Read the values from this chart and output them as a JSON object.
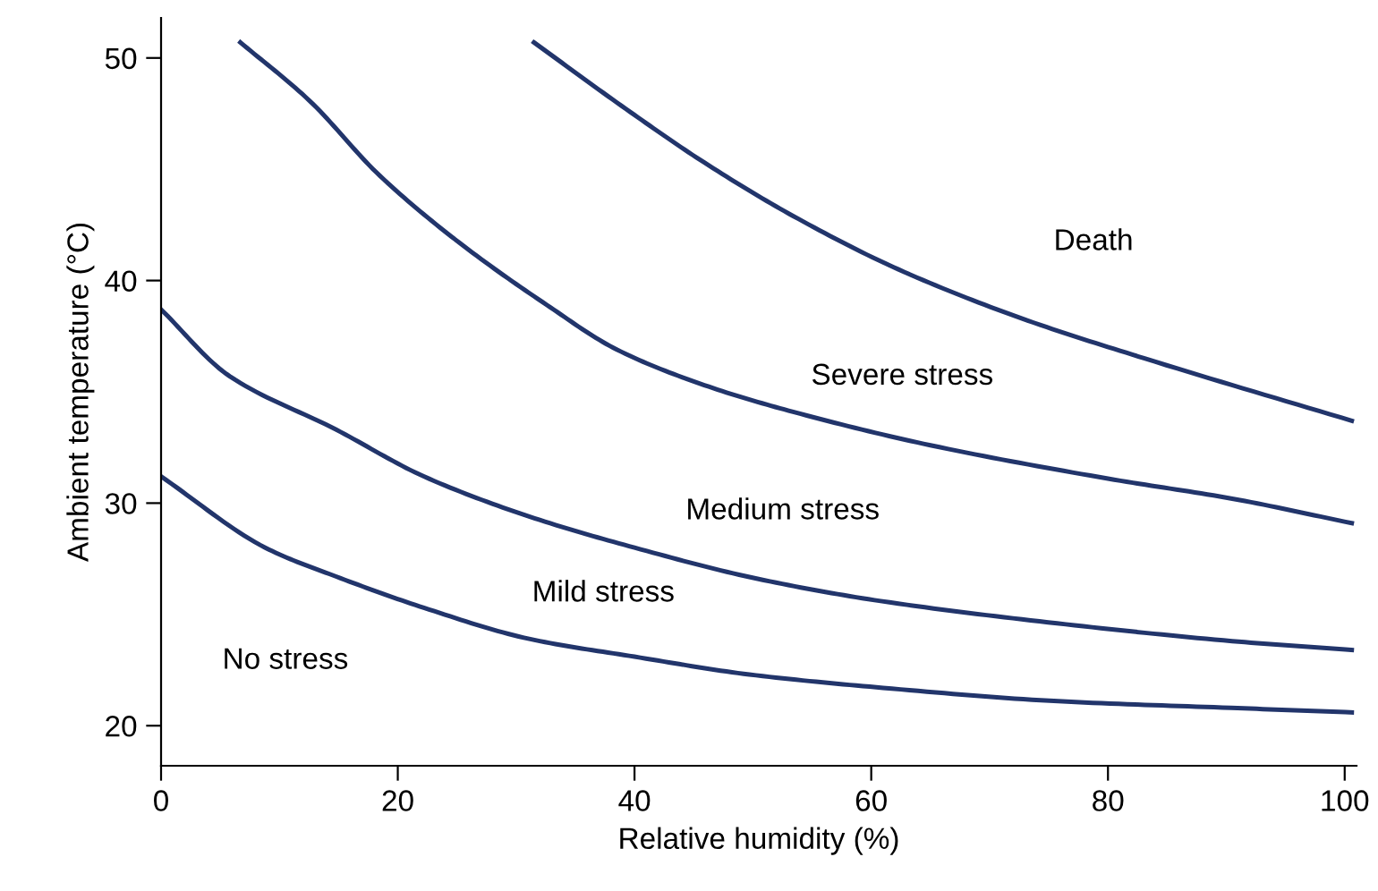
{
  "chart_data": {
    "type": "line",
    "xlabel": "Relative humidity (%)",
    "ylabel": "Ambient temperature (°C)",
    "xlim": [
      0,
      101
    ],
    "ylim": [
      18.2,
      51.8
    ],
    "xticks": [
      0,
      20,
      40,
      60,
      80,
      100
    ],
    "yticks": [
      20,
      30,
      40,
      50
    ],
    "grid": false,
    "legend": false,
    "marker": "none",
    "line_style": "solid",
    "series": [
      {
        "color": "#22356b",
        "x": [
          0,
          8.8,
          14.8,
          22.2,
          31.1,
          40,
          49.7,
          61,
          75.8,
          90.4,
          100.6
        ],
        "values": [
          31.2,
          28.0,
          26.7,
          25.3,
          23.9,
          23.1,
          22.3,
          21.7,
          21.1,
          20.8,
          20.6
        ]
      },
      {
        "color": "#22356b",
        "x": [
          0,
          5.8,
          14.8,
          22.2,
          31.1,
          40,
          50.4,
          60.8,
          75.7,
          90.5,
          100.6
        ],
        "values": [
          38.7,
          35.7,
          33.3,
          31.2,
          29.4,
          28.0,
          26.6,
          25.6,
          24.6,
          23.8,
          23.4
        ]
      },
      {
        "color": "#22356b",
        "x": [
          6.7,
          12.5,
          18.5,
          25.2,
          32.6,
          38.5,
          45.9,
          53.4,
          65,
          80,
          90.5,
          100.6
        ],
        "values": [
          50.7,
          48.1,
          44.7,
          41.7,
          38.9,
          36.9,
          35.3,
          34.1,
          32.6,
          31.1,
          30.2,
          29.1
        ]
      },
      {
        "color": "#22356b",
        "x": [
          31.5,
          39.3,
          45.9,
          53.4,
          62.3,
          72.7,
          83.1,
          100.6
        ],
        "values": [
          50.7,
          47.7,
          45.3,
          42.9,
          40.5,
          38.3,
          36.5,
          33.7
        ]
      }
    ],
    "annotations": [
      "Death",
      "Severe stress",
      "Medium stress",
      "Mild stress",
      "No stress"
    ]
  }
}
